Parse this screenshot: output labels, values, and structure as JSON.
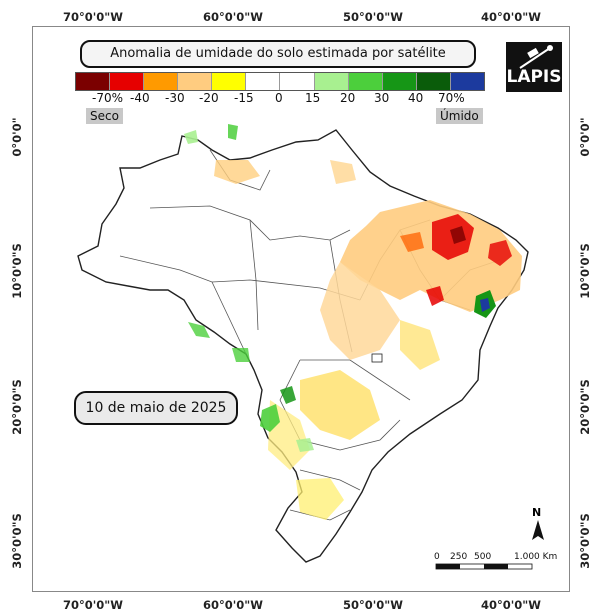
{
  "title": "Anomalia de umidade do solo estimada por satélite",
  "logo_text": "LAPIS",
  "date_label": "10 de maio de 2025",
  "legend": {
    "colors": [
      "#7b0000",
      "#e60000",
      "#ff9a00",
      "#ffcc80",
      "#ffff00",
      "#ffffff",
      "#ffffff",
      "#a8f090",
      "#4ccf3c",
      "#169616",
      "#0a5c0a",
      "#1c3a9e"
    ],
    "ticks": [
      "-70%",
      "-40",
      "-30",
      "-20",
      "-15",
      "0",
      "15",
      "20",
      "30",
      "40",
      "70%"
    ],
    "dry_label": "Seco",
    "wet_label": "Úmido"
  },
  "lon_labels": [
    "70°0'0\"W",
    "60°0'0\"W",
    "50°0'0\"W",
    "40°0'0\"W"
  ],
  "lat_labels": [
    "0°0'0\"",
    "10°0'0\"S",
    "20°0'0\"S",
    "30°0'0\"S"
  ],
  "scale_bar": {
    "labels": [
      "0",
      "250",
      "500",
      "1.000 Km"
    ]
  },
  "north_label": "N",
  "colors": {
    "map_fill": "#ffffff",
    "dry_orange": "#ffcc80",
    "dry_yellow": "#ffff00",
    "dry_red": "#e60000",
    "wet_green": "#4ccf3c",
    "wet_blue": "#1c3a9e"
  }
}
